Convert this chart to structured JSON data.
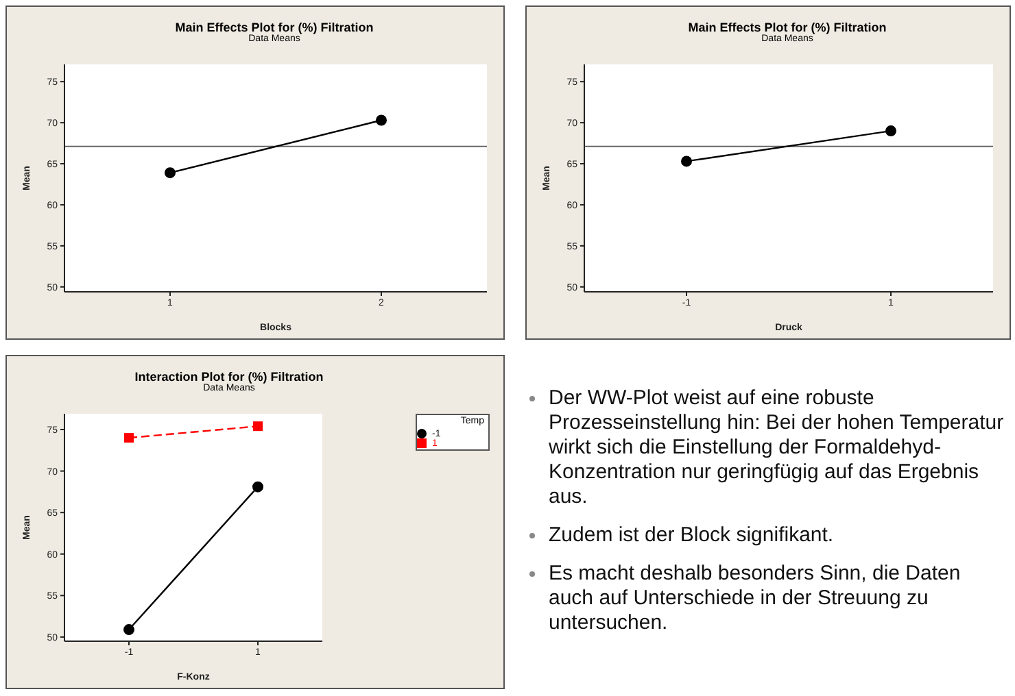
{
  "chart_data": [
    {
      "type": "line",
      "title": "Main Effects Plot for (%) Filtration",
      "subtitle": "Data Means",
      "xlabel": "Blocks",
      "ylabel": "Mean",
      "categories": [
        "1",
        "2"
      ],
      "series": [
        {
          "color": "#000000",
          "values": [
            63.9,
            70.3
          ]
        }
      ],
      "ylim": [
        49.4,
        77.1
      ],
      "yticks": [
        50,
        55,
        60,
        65,
        70,
        75
      ],
      "marker": "circle",
      "line_style": "solid",
      "ref_lines": [
        {
          "axis": "y",
          "value": 67.1,
          "color": "#666666"
        }
      ]
    },
    {
      "type": "line",
      "title": "Main Effects Plot for (%) Filtration",
      "subtitle": "Data Means",
      "xlabel": "Druck",
      "ylabel": "Mean",
      "categories": [
        "-1",
        "1"
      ],
      "series": [
        {
          "color": "#000000",
          "values": [
            65.3,
            69.0
          ]
        }
      ],
      "ylim": [
        49.4,
        77.1
      ],
      "yticks": [
        50,
        55,
        60,
        65,
        70,
        75
      ],
      "marker": "circle",
      "line_style": "solid",
      "ref_lines": [
        {
          "axis": "y",
          "value": 67.1,
          "color": "#666666"
        }
      ]
    },
    {
      "type": "line",
      "title": "Interaction Plot for (%) Filtration",
      "subtitle": "Data Means",
      "xlabel": "F-Konz",
      "ylabel": "Mean",
      "categories": [
        "-1",
        "1"
      ],
      "legend_title": "Temp",
      "legend": "top right",
      "series": [
        {
          "name": "-1",
          "color": "#000000",
          "values": [
            50.9,
            68.1
          ],
          "marker": "circle",
          "line_style": "solid"
        },
        {
          "name": "1",
          "color": "#ff0000",
          "values": [
            74.0,
            75.4
          ],
          "marker": "square",
          "line_style": "dashed"
        }
      ],
      "ylim": [
        49.5,
        76.9
      ],
      "yticks": [
        50,
        55,
        60,
        65,
        70,
        75
      ]
    },
    {
      "type": "other",
      "annotations": [
        "Der WW-Plot weist auf eine robuste Prozesseinstellung hin: Bei der hohen Temperatur wirkt sich die Einstellung der Formaldehyd-Konzentration nur geringfügig auf das Ergebnis aus.",
        "Zudem ist der Block signifikant.",
        "Es macht deshalb besonders Sinn, die Daten auch auf Unterschiede in der Streuung zu untersuchen."
      ]
    }
  ]
}
